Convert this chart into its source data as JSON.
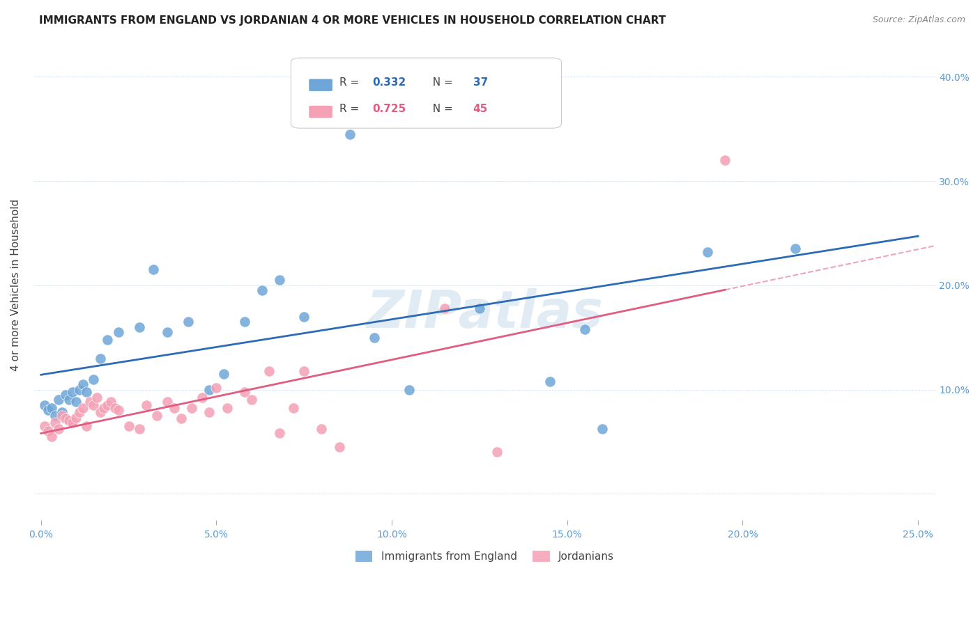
{
  "title": "IMMIGRANTS FROM ENGLAND VS JORDANIAN 4 OR MORE VEHICLES IN HOUSEHOLD CORRELATION CHART",
  "source": "Source: ZipAtlas.com",
  "ylabel": "4 or more Vehicles in Household",
  "xlim": [
    -0.002,
    0.255
  ],
  "ylim": [
    -0.025,
    0.425
  ],
  "xtick_vals": [
    0.0,
    0.05,
    0.1,
    0.15,
    0.2,
    0.25
  ],
  "xtick_labels": [
    "0.0%",
    "5.0%",
    "10.0%",
    "15.0%",
    "20.0%",
    "25.0%"
  ],
  "ytick_vals": [
    0.0,
    0.1,
    0.2,
    0.3,
    0.4
  ],
  "right_ytick_labels": [
    "",
    "10.0%",
    "20.0%",
    "30.0%",
    "40.0%"
  ],
  "legend_r1": "0.332",
  "legend_n1": "37",
  "legend_r2": "0.725",
  "legend_n2": "45",
  "blue_color": "#6ea6d7",
  "pink_color": "#f4a0b5",
  "blue_line_color": "#2d6bb5",
  "pink_line_color": "#e05c80",
  "axis_label_color": "#5b9bd5",
  "watermark": "ZIPatlas",
  "england_x": [
    0.001,
    0.002,
    0.003,
    0.004,
    0.005,
    0.006,
    0.007,
    0.008,
    0.009,
    0.01,
    0.011,
    0.012,
    0.013,
    0.015,
    0.017,
    0.019,
    0.022,
    0.028,
    0.032,
    0.036,
    0.042,
    0.048,
    0.052,
    0.058,
    0.063,
    0.068,
    0.075,
    0.082,
    0.088,
    0.095,
    0.105,
    0.125,
    0.145,
    0.155,
    0.16,
    0.19,
    0.215
  ],
  "england_y": [
    0.085,
    0.08,
    0.082,
    0.075,
    0.09,
    0.078,
    0.095,
    0.09,
    0.098,
    0.088,
    0.1,
    0.105,
    0.098,
    0.11,
    0.13,
    0.148,
    0.155,
    0.16,
    0.215,
    0.155,
    0.165,
    0.1,
    0.115,
    0.165,
    0.195,
    0.205,
    0.17,
    0.382,
    0.345,
    0.15,
    0.1,
    0.178,
    0.108,
    0.158,
    0.062,
    0.232,
    0.235
  ],
  "jordan_x": [
    0.001,
    0.002,
    0.003,
    0.004,
    0.005,
    0.006,
    0.007,
    0.008,
    0.009,
    0.01,
    0.011,
    0.012,
    0.013,
    0.014,
    0.015,
    0.016,
    0.017,
    0.018,
    0.019,
    0.02,
    0.021,
    0.022,
    0.025,
    0.028,
    0.03,
    0.033,
    0.036,
    0.038,
    0.04,
    0.043,
    0.046,
    0.048,
    0.05,
    0.053,
    0.058,
    0.06,
    0.065,
    0.068,
    0.072,
    0.075,
    0.08,
    0.085,
    0.115,
    0.13,
    0.195
  ],
  "jordan_y": [
    0.065,
    0.06,
    0.055,
    0.068,
    0.062,
    0.075,
    0.072,
    0.07,
    0.068,
    0.073,
    0.078,
    0.082,
    0.065,
    0.088,
    0.085,
    0.092,
    0.078,
    0.082,
    0.085,
    0.088,
    0.082,
    0.08,
    0.065,
    0.062,
    0.085,
    0.075,
    0.088,
    0.082,
    0.072,
    0.082,
    0.092,
    0.078,
    0.102,
    0.082,
    0.098,
    0.09,
    0.118,
    0.058,
    0.082,
    0.118,
    0.062,
    0.045,
    0.178,
    0.04,
    0.32
  ]
}
